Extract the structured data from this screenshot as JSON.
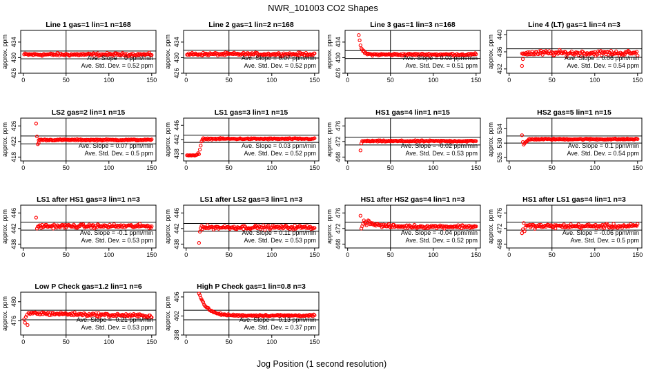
{
  "figure": {
    "title": "NWR_101003  CO2 Shapes",
    "xlabel": "Jog Position (1 second resolution)"
  },
  "chart_data": [
    {
      "type": "scatter",
      "title": "Line 1 gas=1 lin=1 n=168",
      "ylabel": "approx. ppm",
      "xlim": [
        -3,
        155
      ],
      "ylim": [
        426,
        437
      ],
      "xticks": [
        0,
        50,
        100,
        150
      ],
      "yticks": [
        426,
        430,
        434
      ],
      "vline": 50,
      "hlines": [
        431.7,
        429.7
      ],
      "slope_text": "Ave. Slope =  0 ppm/min",
      "std_text": "Ave. Std. Dev. =  0.52 ppm",
      "series": [
        {
          "shape": "flat",
          "x_start": 1,
          "x_end": 150,
          "level": 430.8,
          "noise": 0.3
        }
      ]
    },
    {
      "type": "scatter",
      "title": "Line 2 gas=1 lin=2 n=168",
      "ylabel": "approx. ppm",
      "xlim": [
        -3,
        155
      ],
      "ylim": [
        426,
        437
      ],
      "xticks": [
        0,
        50,
        100,
        150
      ],
      "yticks": [
        426,
        430,
        434
      ],
      "vline": 50,
      "hlines": [
        431.9,
        429.9
      ],
      "slope_text": "Ave. Slope =  0.07 ppm/min",
      "std_text": "Ave. Std. Dev. =  0.52 ppm",
      "series": [
        {
          "shape": "flat",
          "x_start": 1,
          "x_end": 150,
          "level": 430.9,
          "noise": 0.3
        }
      ]
    },
    {
      "type": "scatter",
      "title": "Line 3 gas=1 lin=3 n=168",
      "ylabel": "approx. ppm",
      "xlim": [
        -3,
        155
      ],
      "ylim": [
        426,
        437
      ],
      "xticks": [
        0,
        50,
        100,
        150
      ],
      "yticks": [
        426,
        430,
        434
      ],
      "vline": 50,
      "hlines": [
        431.8,
        429.8
      ],
      "slope_text": "Ave. Slope =  0.03 ppm/min",
      "std_text": "Ave. Std. Dev. =  0.51 ppm",
      "series": [
        {
          "shape": "decay",
          "x_start": 13,
          "x_end": 150,
          "level": 430.8,
          "start": 435.5,
          "tau": 3,
          "noise": 0.25
        }
      ]
    },
    {
      "type": "scatter",
      "title": "Line 4 (LT) gas=1 lin=4 n=3",
      "ylabel": "approx. ppm",
      "xlim": [
        -3,
        155
      ],
      "ylim": [
        431,
        441
      ],
      "xticks": [
        0,
        50,
        100,
        150
      ],
      "yticks": [
        432,
        436,
        440
      ],
      "vline": 50,
      "hlines": [
        436.7,
        434.7
      ],
      "slope_text": "Ave. Slope =  0.06 ppm/min",
      "std_text": "Ave. Std. Dev. =  0.54 ppm",
      "series": [
        {
          "shape": "flat",
          "x_start": 15,
          "x_end": 150,
          "level": 435.7,
          "noise": 0.5
        },
        {
          "shape": "points",
          "x": [
            15,
            16
          ],
          "y": [
            432.7,
            434.3
          ]
        }
      ]
    },
    {
      "type": "scatter",
      "title": "LS2 gas=2 lin=1 n=15",
      "ylabel": "approx. ppm",
      "xlim": [
        -3,
        155
      ],
      "ylim": [
        417,
        428
      ],
      "xticks": [
        0,
        50,
        100,
        150
      ],
      "yticks": [
        418,
        422,
        426
      ],
      "vline": 50,
      "hlines": [
        423.4,
        421.4
      ],
      "slope_text": "Ave. Slope =  0.07 ppm/min",
      "std_text": "Ave. Std. Dev. =  0.5  ppm",
      "series": [
        {
          "shape": "flat",
          "x_start": 18,
          "x_end": 150,
          "level": 422.4,
          "noise": 0.15
        },
        {
          "shape": "points",
          "x": [
            15,
            16,
            17,
            18
          ],
          "y": [
            426.6,
            423.3,
            421.3,
            421.6
          ]
        }
      ]
    },
    {
      "type": "scatter",
      "title": "LS1 gas=3 lin=1 n=15",
      "ylabel": "approx. ppm",
      "xlim": [
        -3,
        155
      ],
      "ylim": [
        436,
        448
      ],
      "xticks": [
        0,
        50,
        100,
        150
      ],
      "yticks": [
        438,
        442,
        446
      ],
      "vline": 50,
      "hlines": [
        443.2,
        441.2
      ],
      "slope_text": "Ave. Slope =  0.03 ppm/min",
      "std_text": "Ave. Std. Dev. =  0.52 ppm",
      "series": [
        {
          "shape": "flat",
          "x_start": 20,
          "x_end": 150,
          "level": 442.2,
          "noise": 0.15
        },
        {
          "shape": "points",
          "x": [
            1,
            2,
            3,
            4,
            5,
            6,
            7,
            8,
            9,
            10,
            11,
            12,
            13,
            14,
            15,
            16,
            17,
            18,
            19
          ],
          "y": [
            437.6,
            437.6,
            437.5,
            437.6,
            437.6,
            437.5,
            437.6,
            437.6,
            437.6,
            437.5,
            437.6,
            437.7,
            437.8,
            438.2,
            437.9,
            439.2,
            440.3,
            441.5,
            442.0
          ]
        }
      ]
    },
    {
      "type": "scatter",
      "title": "HS1 gas=4 lin=1 n=15",
      "ylabel": "approx. ppm",
      "xlim": [
        -3,
        155
      ],
      "ylim": [
        467,
        478
      ],
      "xticks": [
        0,
        50,
        100,
        150
      ],
      "yticks": [
        468,
        472,
        476
      ],
      "vline": 50,
      "hlines": [
        473.1,
        471.1
      ],
      "slope_text": "Ave. Slope =  -0.02 ppm/min",
      "std_text": "Ave. Std. Dev. =  0.53 ppm",
      "series": [
        {
          "shape": "flat",
          "x_start": 17,
          "x_end": 150,
          "level": 472.1,
          "noise": 0.15
        },
        {
          "shape": "points",
          "x": [
            15,
            16
          ],
          "y": [
            469.7,
            471.5
          ]
        }
      ]
    },
    {
      "type": "scatter",
      "title": "HS2 gas=5 lin=1 n=15",
      "ylabel": "approx. ppm",
      "xlim": [
        -3,
        155
      ],
      "ylim": [
        525,
        537
      ],
      "xticks": [
        0,
        50,
        100,
        150
      ],
      "yticks": [
        526,
        530,
        534
      ],
      "vline": 50,
      "hlines": [
        532.0,
        530.0
      ],
      "slope_text": "Ave. Slope =  0.1  ppm/min",
      "std_text": "Ave. Std. Dev. =  0.54 ppm",
      "series": [
        {
          "shape": "flat",
          "x_start": 23,
          "x_end": 150,
          "level": 531.1,
          "noise": 0.15
        },
        {
          "shape": "points",
          "x": [
            15,
            16,
            17,
            18,
            19,
            20,
            21,
            22
          ],
          "y": [
            532.2,
            530.3,
            529.6,
            529.9,
            530.2,
            530.4,
            530.6,
            530.7
          ]
        }
      ]
    },
    {
      "type": "scatter",
      "title": "LS1 after HS1 gas=3 lin=1 n=3",
      "ylabel": "approx. ppm",
      "xlim": [
        -3,
        155
      ],
      "ylim": [
        437,
        448
      ],
      "xticks": [
        0,
        50,
        100,
        150
      ],
      "yticks": [
        438,
        442,
        446
      ],
      "vline": 50,
      "hlines": [
        443.6,
        441.6
      ],
      "slope_text": "Ave. Slope =  -0.1  ppm/min",
      "std_text": "Ave. Std. Dev. =  0.53 ppm",
      "series": [
        {
          "shape": "flat",
          "x_start": 17,
          "x_end": 150,
          "level": 442.6,
          "noise": 0.4
        },
        {
          "shape": "points",
          "x": [
            15,
            16
          ],
          "y": [
            444.8,
            442.0
          ]
        }
      ]
    },
    {
      "type": "scatter",
      "title": "LS1 after LS2 gas=3 lin=1 n=3",
      "ylabel": "approx. ppm",
      "xlim": [
        -3,
        155
      ],
      "ylim": [
        437,
        448
      ],
      "xticks": [
        0,
        50,
        100,
        150
      ],
      "yticks": [
        438,
        442,
        446
      ],
      "vline": 50,
      "hlines": [
        443.3,
        441.3
      ],
      "slope_text": "Ave. Slope =  0.11 ppm/min",
      "std_text": "Ave. Std. Dev. =  0.53 ppm",
      "series": [
        {
          "shape": "flat",
          "x_start": 17,
          "x_end": 150,
          "level": 442.3,
          "noise": 0.4
        },
        {
          "shape": "points",
          "x": [
            15,
            16
          ],
          "y": [
            438.3,
            441.2
          ]
        }
      ]
    },
    {
      "type": "scatter",
      "title": "HS1 after HS2 gas=4 lin=1 n=3",
      "ylabel": "approx. ppm",
      "xlim": [
        -3,
        155
      ],
      "ylim": [
        467,
        478
      ],
      "xticks": [
        0,
        50,
        100,
        150
      ],
      "yticks": [
        468,
        472,
        476
      ],
      "vline": 50,
      "hlines": [
        473.6,
        471.6
      ],
      "slope_text": "Ave. Slope =  -0.04 ppm/min",
      "std_text": "Ave. Std. Dev. =  0.52 ppm",
      "series": [
        {
          "shape": "decay",
          "x_start": 24,
          "x_end": 150,
          "level": 472.5,
          "start": 473.8,
          "tau": 10,
          "noise": 0.35
        },
        {
          "shape": "points",
          "x": [
            15,
            16,
            17,
            18,
            19,
            20,
            21,
            22,
            23
          ],
          "y": [
            475.3,
            472.0,
            472.6,
            473.2,
            474.1,
            473.6,
            473.2,
            472.8,
            473.7
          ]
        }
      ]
    },
    {
      "type": "scatter",
      "title": "HS1 after LS1 gas=4 lin=1 n=3",
      "ylabel": "approx. ppm",
      "xlim": [
        -3,
        155
      ],
      "ylim": [
        467,
        478
      ],
      "xticks": [
        0,
        50,
        100,
        150
      ],
      "yticks": [
        468,
        472,
        476
      ],
      "vline": 50,
      "hlines": [
        473.6,
        471.6
      ],
      "slope_text": "Ave. Slope =  -0.06 ppm/min",
      "std_text": "Ave. Std. Dev. =  0.5  ppm",
      "series": [
        {
          "shape": "flat",
          "x_start": 19,
          "x_end": 150,
          "level": 472.6,
          "noise": 0.45
        },
        {
          "shape": "points",
          "x": [
            15,
            16,
            17,
            18
          ],
          "y": [
            470.8,
            471.8,
            473.4,
            471.3
          ]
        }
      ]
    },
    {
      "type": "scatter",
      "title": "Low P Check gas=1.2 lin=1 n=6",
      "ylabel": "approx. ppm",
      "xlim": [
        -3,
        155
      ],
      "ylim": [
        473,
        482
      ],
      "xticks": [
        0,
        50,
        100,
        150
      ],
      "yticks": [
        476,
        480
      ],
      "vline": 50,
      "hlines": [
        478.2,
        476.2
      ],
      "slope_text": "Ave. Slope =  -0.21 ppm/min",
      "std_text": "Ave. Std. Dev. =  0.53 ppm",
      "series": [
        {
          "shape": "trend",
          "x_start": 6,
          "x_end": 150,
          "y_start": 477.6,
          "y_end": 477.0,
          "noise": 0.3
        },
        {
          "shape": "points",
          "x": [
            1,
            2,
            3,
            4,
            5
          ],
          "y": [
            476.3,
            475.6,
            476.8,
            477.2,
            475.1
          ]
        }
      ]
    },
    {
      "type": "scatter",
      "title": "High P Check gas=1 lin=0.8 n=3",
      "ylabel": "approx. ppm",
      "xlim": [
        -3,
        155
      ],
      "ylim": [
        398,
        407
      ],
      "xticks": [
        0,
        50,
        100,
        150
      ],
      "yticks": [
        398,
        402,
        406
      ],
      "vline": 50,
      "hlines": [
        403.2,
        401.2
      ],
      "slope_text": "Ave. Slope =  -0.13 ppm/min",
      "std_text": "Ave. Std. Dev. =  0.37 ppm",
      "series": [
        {
          "shape": "decay",
          "x_start": 15,
          "x_end": 150,
          "level": 402.1,
          "start": 406.8,
          "tau": 9,
          "noise": 0.15
        }
      ]
    }
  ]
}
